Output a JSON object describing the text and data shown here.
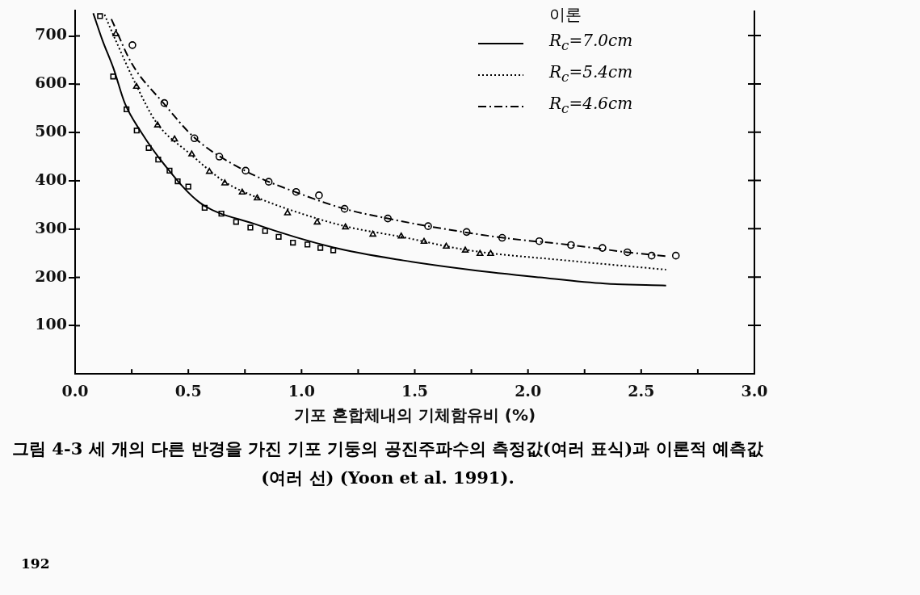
{
  "chart_data": {
    "type": "line",
    "xlabel": "기포 혼합체내의 기체함유비 (%)",
    "legend_title": "이론",
    "legend": "top right",
    "grid": false,
    "xlim": [
      0,
      3
    ],
    "xticks": [
      {
        "value": 0,
        "label": "0.0"
      },
      {
        "value": 0.25,
        "label": null
      },
      {
        "value": 0.5,
        "label": "0.5"
      },
      {
        "value": 0.75,
        "label": null
      },
      {
        "value": 1,
        "label": "1.0"
      },
      {
        "value": 1.25,
        "label": null
      },
      {
        "value": 1.5,
        "label": "1.5"
      },
      {
        "value": 1.75,
        "label": null
      },
      {
        "value": 2,
        "label": "2.0"
      },
      {
        "value": 2.25,
        "label": null
      },
      {
        "value": 2.5,
        "label": "2.5"
      },
      {
        "value": 2.75,
        "label": null
      },
      {
        "value": 3,
        "label": "3.0"
      }
    ],
    "ylim": [
      0,
      752
    ],
    "yticks": [
      100,
      200,
      300,
      400,
      500,
      600,
      700
    ],
    "series": [
      {
        "type": "line",
        "name": "R$_{c}$=7.0cm",
        "color": "#000000",
        "line_style": "solid",
        "marker": "none",
        "x": [
          0.08,
          0.12,
          0.17,
          0.22,
          0.29,
          0.4,
          0.55,
          0.79,
          1.14,
          1.45,
          1.74,
          2.05,
          2.34,
          2.61
        ],
        "values": [
          747,
          692,
          632,
          560,
          502,
          430,
          355,
          311,
          262,
          235,
          216,
          200,
          187,
          183
        ]
      },
      {
        "type": "line",
        "name": "R$_{c}$=5.4cm",
        "color": "#000000",
        "line_style": "dotted",
        "marker": "none",
        "x": [
          0.13,
          0.18,
          0.27,
          0.36,
          0.51,
          0.66,
          0.8,
          1.0,
          1.2,
          1.44,
          1.74,
          2.17,
          2.61
        ],
        "values": [
          744,
          690,
          598,
          520,
          455,
          398,
          366,
          332,
          305,
          284,
          256,
          235,
          216
        ]
      },
      {
        "type": "line",
        "name": "R$_{c}$=4.6cm",
        "color": "#000000",
        "line_style": "dashdot",
        "marker": "none",
        "x": [
          0.16,
          0.25,
          0.39,
          0.53,
          0.75,
          1.0,
          1.19,
          1.38,
          1.56,
          1.89,
          2.19,
          2.44,
          2.61
        ],
        "values": [
          735,
          643,
          561,
          488,
          421,
          372,
          342,
          322,
          306,
          282,
          267,
          252,
          244
        ]
      },
      {
        "type": "scatter",
        "color": "#000000",
        "marker": "square",
        "x": [
          0.11,
          0.168,
          0.227,
          0.272,
          0.325,
          0.367,
          0.417,
          0.453,
          0.5,
          0.572,
          0.646,
          0.711,
          0.774,
          0.839,
          0.899,
          0.962,
          1.026,
          1.083,
          1.14
        ],
        "values": [
          741,
          616,
          548,
          504,
          468,
          444,
          421,
          399,
          388,
          344,
          332,
          315,
          303,
          296,
          284,
          272,
          268,
          261,
          256
        ]
      },
      {
        "type": "scatter",
        "color": "#000000",
        "marker": "triangle",
        "x": [
          0.18,
          0.271,
          0.364,
          0.439,
          0.515,
          0.593,
          0.661,
          0.738,
          0.804,
          0.938,
          1.069,
          1.194,
          1.315,
          1.44,
          1.541,
          1.639,
          1.723,
          1.788,
          1.835
        ],
        "values": [
          704,
          595,
          515,
          486,
          455,
          419,
          395,
          376,
          364,
          333,
          314,
          304,
          289,
          285,
          274,
          264,
          256,
          249,
          249
        ]
      },
      {
        "type": "scatter",
        "color": "#000000",
        "marker": "circle",
        "x": [
          0.253,
          0.394,
          0.527,
          0.637,
          0.753,
          0.855,
          0.976,
          1.077,
          1.19,
          1.381,
          1.559,
          1.729,
          1.886,
          2.05,
          2.19,
          2.329,
          2.439,
          2.546,
          2.653
        ],
        "values": [
          681,
          561,
          488,
          450,
          421,
          398,
          377,
          370,
          342,
          322,
          306,
          294,
          282,
          275,
          267,
          261,
          252,
          245,
          245
        ]
      }
    ],
    "annotations": [
      "그림 4-3  세 개의 다른 반경을 가진 기포 기둥의 공진주파수의 측정값(여러 표식)과 이론적 예측값(여러 선) (Yoon et al. 1991).",
      "192"
    ]
  }
}
